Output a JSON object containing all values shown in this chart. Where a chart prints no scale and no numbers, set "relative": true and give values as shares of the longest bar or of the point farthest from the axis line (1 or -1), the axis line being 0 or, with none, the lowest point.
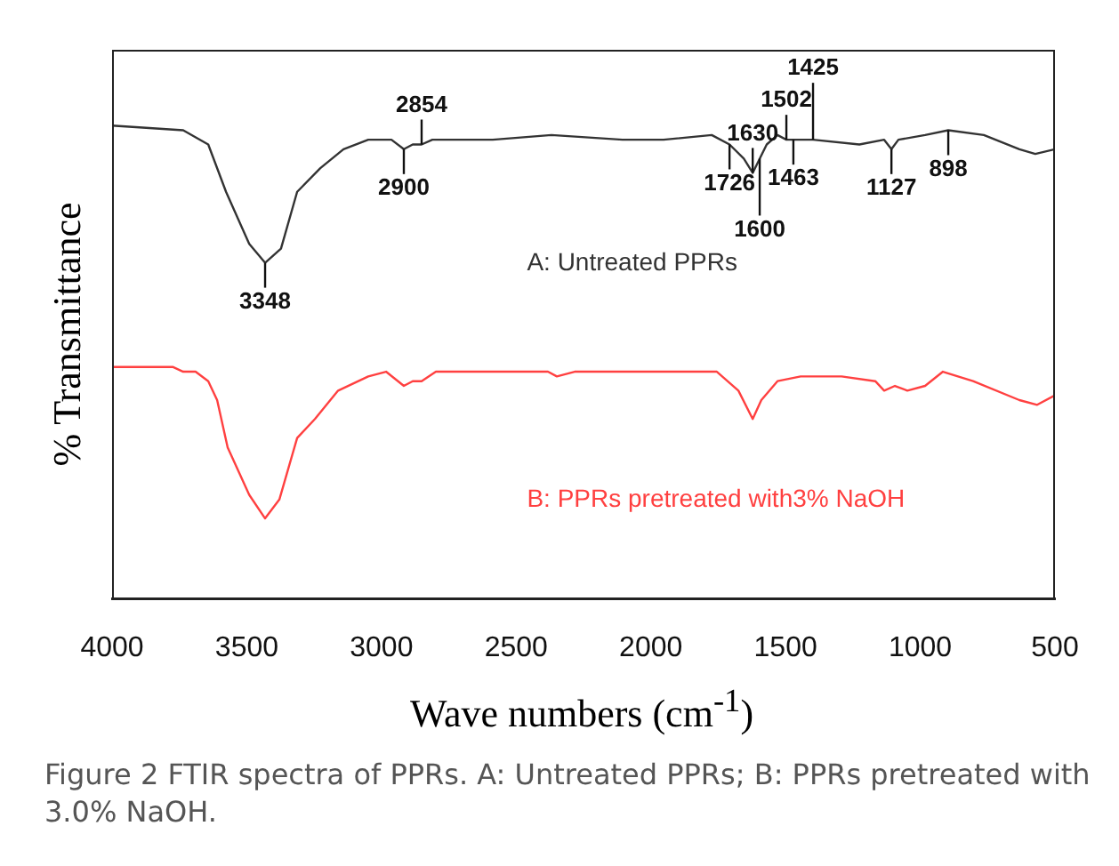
{
  "chart_data": {
    "type": "line",
    "relative": true,
    "xlabel": "Wave numbers (cm$^{-1}$)",
    "ylabel": "% Transmittance",
    "xlim": [
      4000,
      500
    ],
    "xticks": [
      4000,
      3500,
      3000,
      2500,
      2000,
      1500,
      1000,
      500
    ],
    "grid": false,
    "legend": false,
    "marker": "none",
    "line_style": "solid",
    "series": [
      {
        "name": "A: Untreated PPRs",
        "color": "#333333",
        "x": [
          4000,
          3736,
          3643,
          3577,
          3491,
          3432,
          3373,
          3313,
          3227,
          3141,
          3049,
          2963,
          2917,
          2884,
          2851,
          2811,
          2587,
          2369,
          2105,
          1953,
          1774,
          1708,
          1655,
          1622,
          1596,
          1570,
          1530,
          1497,
          1471,
          1398,
          1226,
          1134,
          1107,
          1081,
          982,
          896,
          764,
          632,
          573,
          500
        ],
        "values": [
          1.0,
          0.99,
          0.96,
          0.86,
          0.75,
          0.71,
          0.74,
          0.86,
          0.91,
          0.95,
          0.97,
          0.97,
          0.95,
          0.96,
          0.96,
          0.97,
          0.97,
          0.98,
          0.97,
          0.97,
          0.98,
          0.96,
          0.93,
          0.9,
          0.93,
          0.96,
          0.98,
          0.97,
          0.97,
          0.97,
          0.96,
          0.97,
          0.95,
          0.97,
          0.98,
          0.99,
          0.98,
          0.95,
          0.94,
          0.95
        ]
      },
      {
        "name": "B: PPRs pretreated with3% NaOH",
        "color": "#ff4040",
        "x": [
          4000,
          3775,
          3736,
          3690,
          3643,
          3610,
          3571,
          3491,
          3432,
          3379,
          3313,
          3247,
          3161,
          3049,
          2983,
          2917,
          2884,
          2851,
          2798,
          2481,
          2382,
          2349,
          2283,
          2105,
          1907,
          1755,
          1675,
          1622,
          1590,
          1530,
          1444,
          1292,
          1167,
          1134,
          1094,
          1048,
          982,
          916,
          804,
          632,
          566,
          500
        ],
        "values": [
          0.49,
          0.49,
          0.48,
          0.48,
          0.46,
          0.42,
          0.32,
          0.22,
          0.17,
          0.21,
          0.34,
          0.38,
          0.44,
          0.47,
          0.48,
          0.45,
          0.46,
          0.46,
          0.48,
          0.48,
          0.48,
          0.47,
          0.48,
          0.48,
          0.48,
          0.48,
          0.44,
          0.38,
          0.42,
          0.46,
          0.47,
          0.47,
          0.46,
          0.44,
          0.45,
          0.44,
          0.45,
          0.48,
          0.46,
          0.42,
          0.41,
          0.43
        ]
      }
    ],
    "annotations": [
      {
        "text": "3348",
        "x": 3432,
        "y": 0.71
      },
      {
        "text": "2900",
        "x": 2917,
        "y": 0.95
      },
      {
        "text": "2854",
        "x": 2851,
        "y": 0.96
      },
      {
        "text": "1726",
        "x": 1708,
        "y": 0.96
      },
      {
        "text": "1630",
        "x": 1622,
        "y": 0.9
      },
      {
        "text": "1600",
        "x": 1596,
        "y": 0.93
      },
      {
        "text": "1502",
        "x": 1497,
        "y": 0.97
      },
      {
        "text": "1463",
        "x": 1471,
        "y": 0.97
      },
      {
        "text": "1425",
        "x": 1398,
        "y": 0.97
      },
      {
        "text": "1127",
        "x": 1107,
        "y": 0.95
      },
      {
        "text": "898",
        "x": 896,
        "y": 0.99
      },
      "Figure 2 FTIR spectra of PPRs. A: Untreated PPRs; B: PPRs pretreated with 3.0% NaOH."
    ]
  }
}
